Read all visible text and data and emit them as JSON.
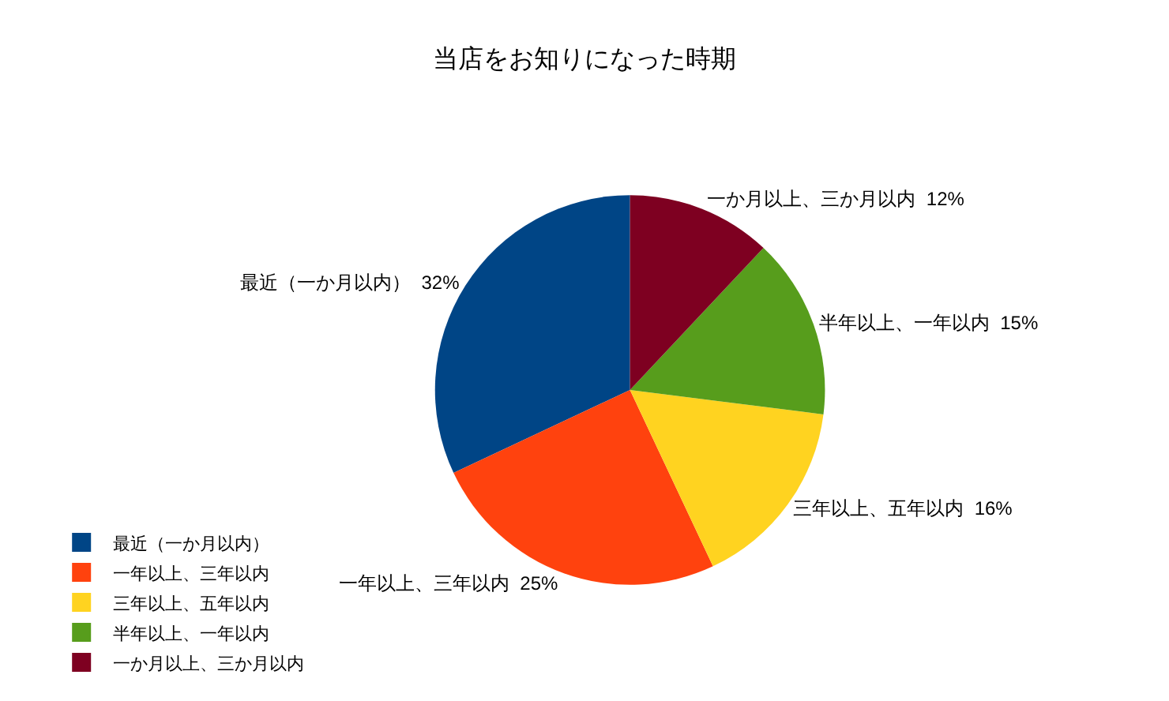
{
  "chart_data": {
    "type": "pie",
    "title": "当店をお知りになった時期",
    "categories": [
      "最近（一か月以内）",
      "一年以上、三年以内",
      "三年以上、五年以内",
      "半年以上、一年以内",
      "一か月以上、三か月以内"
    ],
    "values": [
      32,
      25,
      16,
      15,
      12
    ],
    "value_labels": [
      "32%",
      "25%",
      "16%",
      "15%",
      "12%"
    ],
    "colors": [
      "#004586",
      "#ff420e",
      "#ffd320",
      "#579d1c",
      "#7e0021"
    ],
    "legend": "bottom left"
  }
}
